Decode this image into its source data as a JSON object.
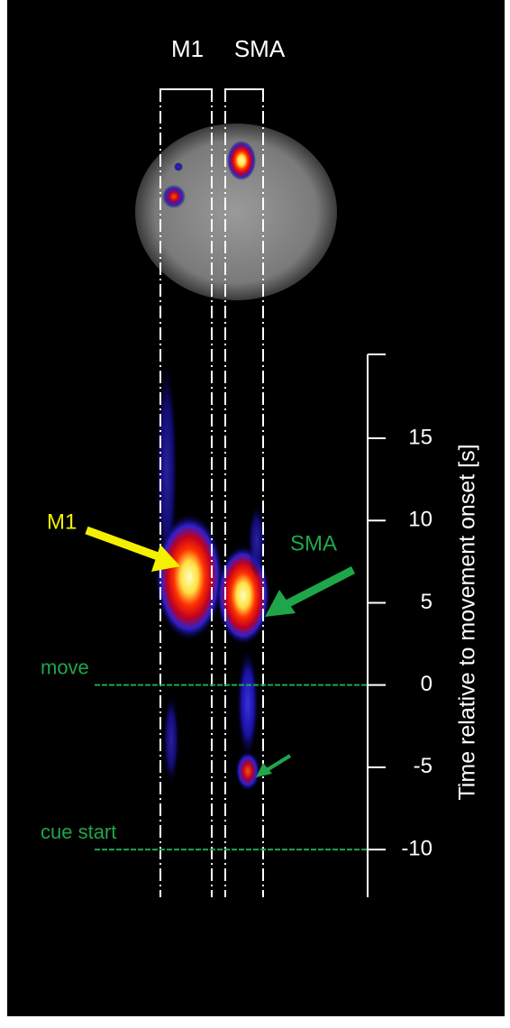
{
  "chart_data": {
    "type": "time-axis-map",
    "regions": [
      "M1",
      "SMA"
    ],
    "callouts": [
      "M1",
      "SMA"
    ],
    "y_label": "Time relative to movement onset [s]",
    "ylim": [
      -12.9,
      20.1
    ],
    "yticks": [
      15,
      10,
      5,
      0,
      -5,
      -10
    ],
    "events": [
      {
        "label": "move",
        "value": 0
      },
      {
        "label": "cue start",
        "value": -10
      }
    ],
    "event_color": "#1fa64a"
  }
}
